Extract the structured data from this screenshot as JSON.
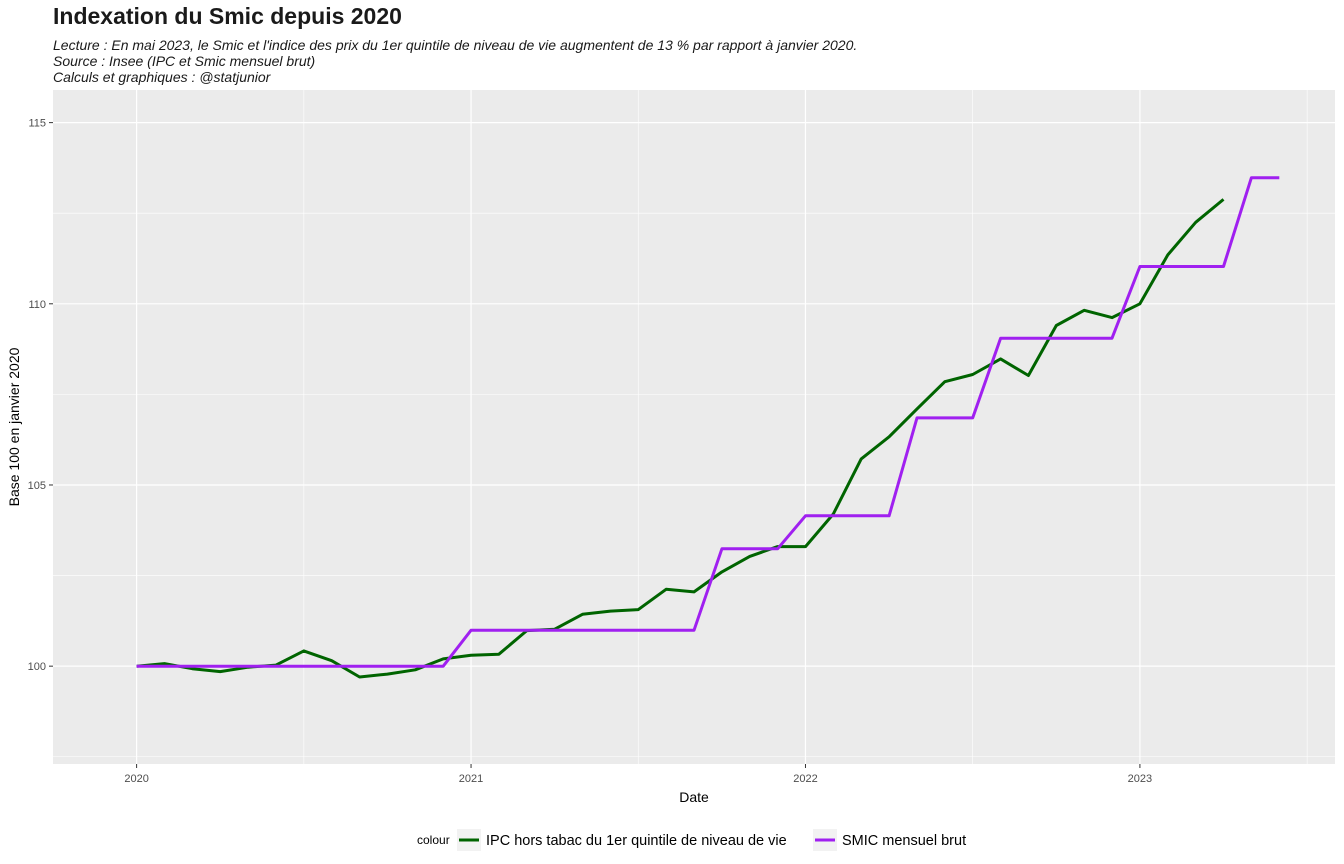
{
  "title": "Indexation du Smic depuis 2020",
  "subtitle_lines": [
    "Lecture : En mai 2023, le Smic et l'indice des prix du 1er quintile de niveau de vie augmentent de 13 % par rapport à janvier 2020.",
    "Source : Insee (IPC et Smic mensuel brut)",
    "Calculs et graphiques : @statjunior"
  ],
  "chart_data": {
    "type": "line",
    "title": "Indexation du Smic depuis 2020",
    "xlabel": "Date",
    "ylabel": "Base 100 en janvier 2020",
    "x_ticks": [
      "2020",
      "2021",
      "2022",
      "2023"
    ],
    "y_ticks": [
      100,
      105,
      110,
      115
    ],
    "ylim": [
      97.3,
      115.9
    ],
    "xlim": [
      "2019-10-01",
      "2023-08-01"
    ],
    "grid": true,
    "legend_position": "bottom",
    "legend_title": "colour",
    "series": [
      {
        "name": "IPC hors tabac du 1er quintile de niveau de vie",
        "color": "#006400",
        "x": [
          "2020-01",
          "2020-02",
          "2020-03",
          "2020-04",
          "2020-05",
          "2020-06",
          "2020-07",
          "2020-08",
          "2020-09",
          "2020-10",
          "2020-11",
          "2020-12",
          "2021-01",
          "2021-02",
          "2021-03",
          "2021-04",
          "2021-05",
          "2021-06",
          "2021-07",
          "2021-08",
          "2021-09",
          "2021-10",
          "2021-11",
          "2021-12",
          "2022-01",
          "2022-02",
          "2022-03",
          "2022-04",
          "2022-05",
          "2022-06",
          "2022-07",
          "2022-08",
          "2022-09",
          "2022-10",
          "2022-11",
          "2022-12",
          "2023-01",
          "2023-02",
          "2023-03",
          "2023-04"
        ],
        "values": [
          100.0,
          100.07,
          99.93,
          99.85,
          99.97,
          100.03,
          100.42,
          100.15,
          99.7,
          99.78,
          99.9,
          100.2,
          100.3,
          100.33,
          100.98,
          101.02,
          101.43,
          101.52,
          101.56,
          102.12,
          102.05,
          102.6,
          103.03,
          103.3,
          103.3,
          104.2,
          105.72,
          106.33,
          107.1,
          107.85,
          108.05,
          108.48,
          108.02,
          109.4,
          109.82,
          109.62,
          110.0,
          111.35,
          112.25,
          112.88
        ]
      },
      {
        "name": "SMIC mensuel brut",
        "color": "#a020f0",
        "x": [
          "2020-01",
          "2020-12",
          "2021-01",
          "2021-09",
          "2021-10",
          "2021-12",
          "2022-01",
          "2022-04",
          "2022-05",
          "2022-07",
          "2022-08",
          "2022-12",
          "2023-01",
          "2023-04",
          "2023-05",
          "2023-06"
        ],
        "values": [
          100.0,
          100.0,
          100.99,
          100.99,
          103.24,
          103.24,
          104.15,
          104.15,
          106.85,
          106.85,
          109.05,
          109.05,
          111.03,
          111.03,
          113.48,
          113.48
        ]
      }
    ]
  }
}
